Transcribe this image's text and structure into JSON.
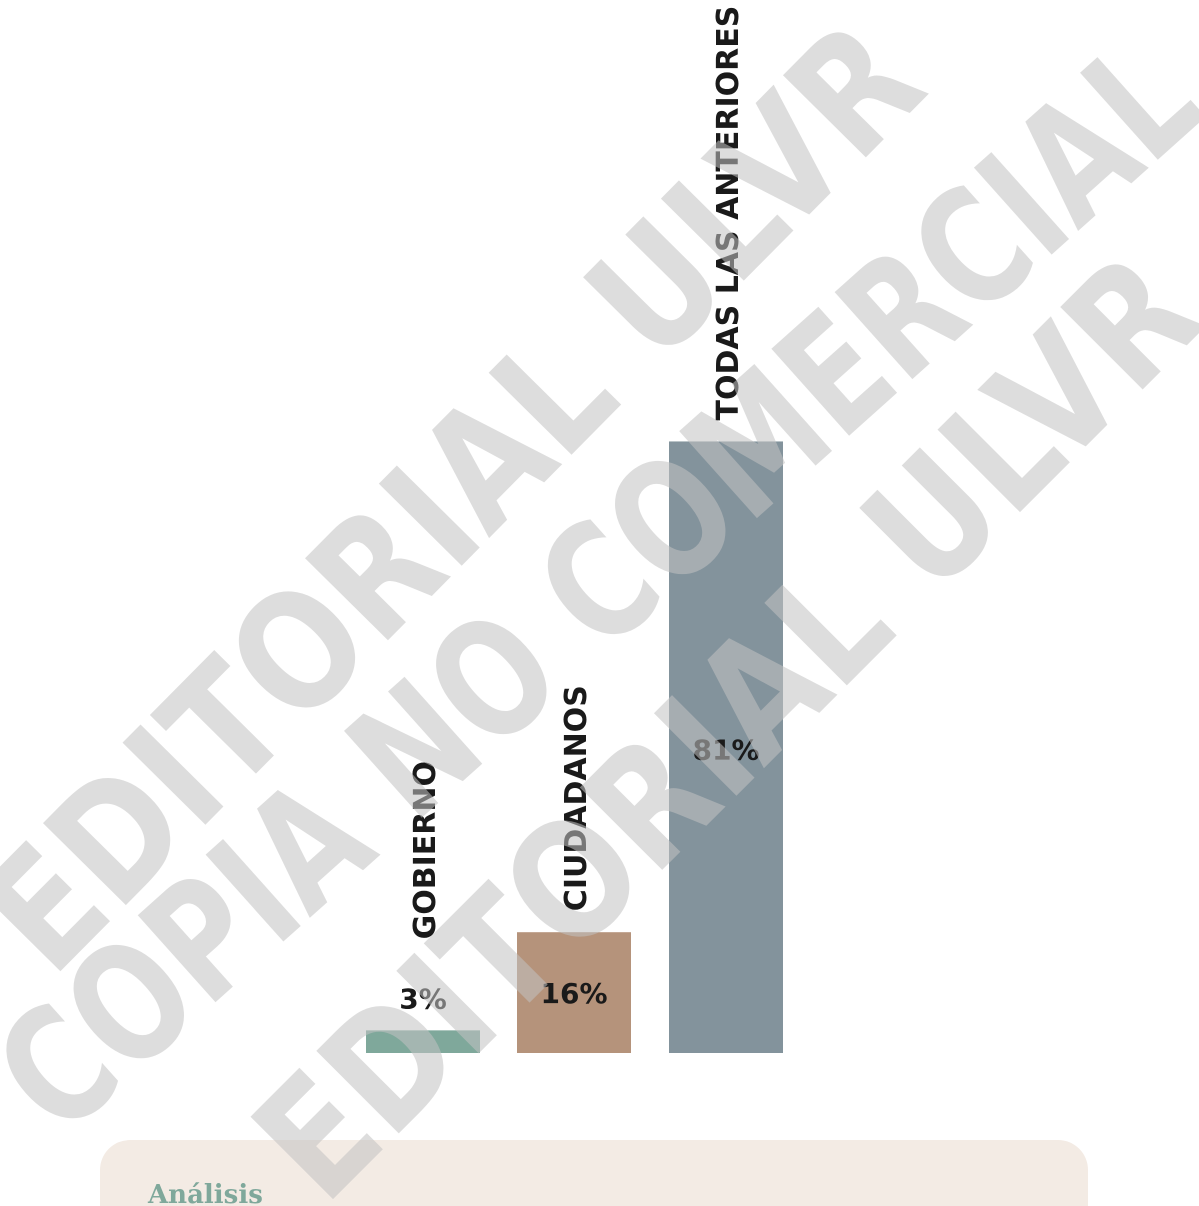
{
  "chart_data": {
    "type": "bar",
    "categories": [
      "GOBIERNO",
      "CIUDADANOS",
      "TODAS LAS ANTERIORES"
    ],
    "values": [
      3,
      16,
      81
    ],
    "value_labels": [
      "3%",
      "16%",
      "81%"
    ],
    "colors": [
      "#7fa89b",
      "#b5937b",
      "#83939c"
    ]
  },
  "watermarks": [
    "EDITORIAL ULVR",
    "COPIA NO COMERCIAL",
    "EDITORIAL ULVR"
  ],
  "analysis": {
    "title": "Análisis"
  }
}
